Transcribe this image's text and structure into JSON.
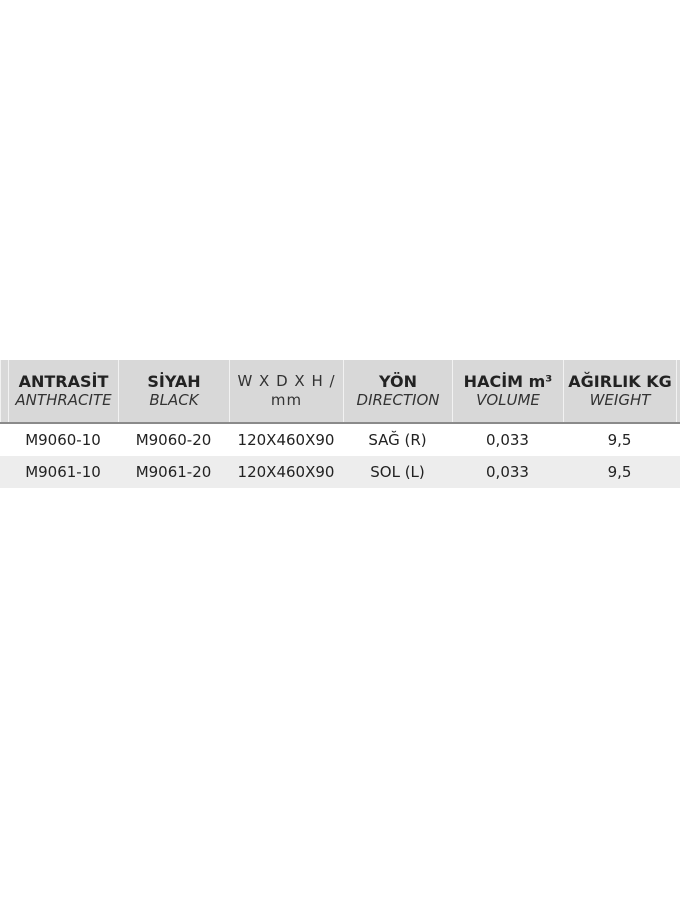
{
  "headers": [
    {
      "tr": "ANTRASİT",
      "en": "ANTHRACITE"
    },
    {
      "tr": "SİYAH",
      "en": "BLACK"
    },
    {
      "tr": "W X D X H  /",
      "en": "mm"
    },
    {
      "tr": "YÖN",
      "en": "DIRECTION"
    },
    {
      "tr": "HACİM m³",
      "en": "VOLUME"
    },
    {
      "tr": "AĞIRLIK KG",
      "en": "WEIGHT"
    }
  ],
  "rows": [
    [
      "M9060-10",
      "M9060-20",
      "120X460X90",
      "SAĞ (R)",
      "0,033",
      "9,5"
    ],
    [
      "M9061-10",
      "M9061-20",
      "120X460X90",
      "SOL (L)",
      "0,033",
      "9,5"
    ]
  ]
}
